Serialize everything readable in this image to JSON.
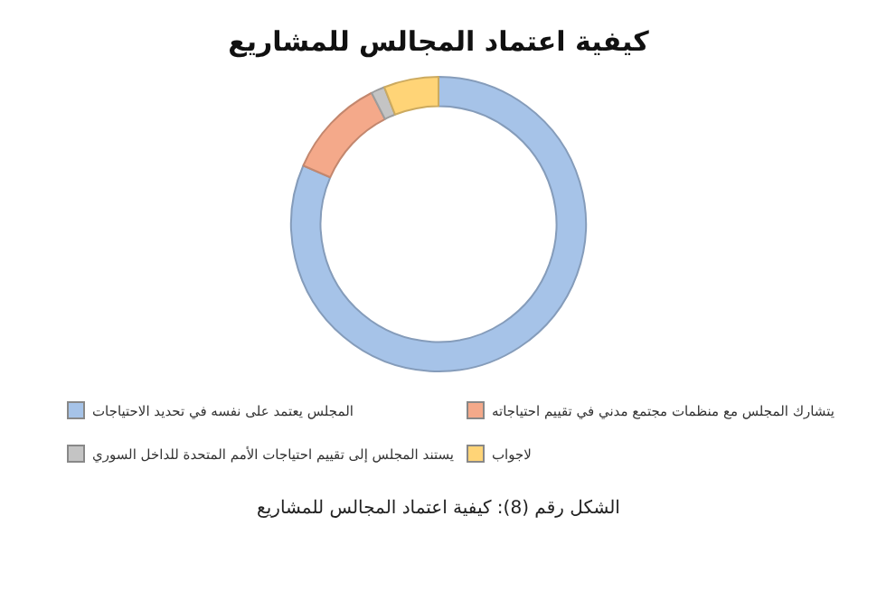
{
  "chart_data": {
    "type": "donut",
    "title": "كيفية اعتماد المجالس للمشاريع",
    "categories": [
      "المجلس يعتمد على نفسه في تحديد الاحتياجات",
      "يتشارك المجلس مع منظمات مجتمع مدني في تقييم احتياجاته",
      "يستند المجلس إلى تقييم احتياجات الأمم المتحدة للداخل السوري",
      "لاجواب"
    ],
    "values": [
      81.5,
      11,
      1.5,
      6
    ],
    "colors": [
      "#a6c3e8",
      "#f4a98a",
      "#c4c4c4",
      "#ffd477"
    ],
    "legend": "bottom",
    "annotations": [
      "الشكل رقم (8): كيفية اعتماد المجالس للمشاريع"
    ]
  }
}
